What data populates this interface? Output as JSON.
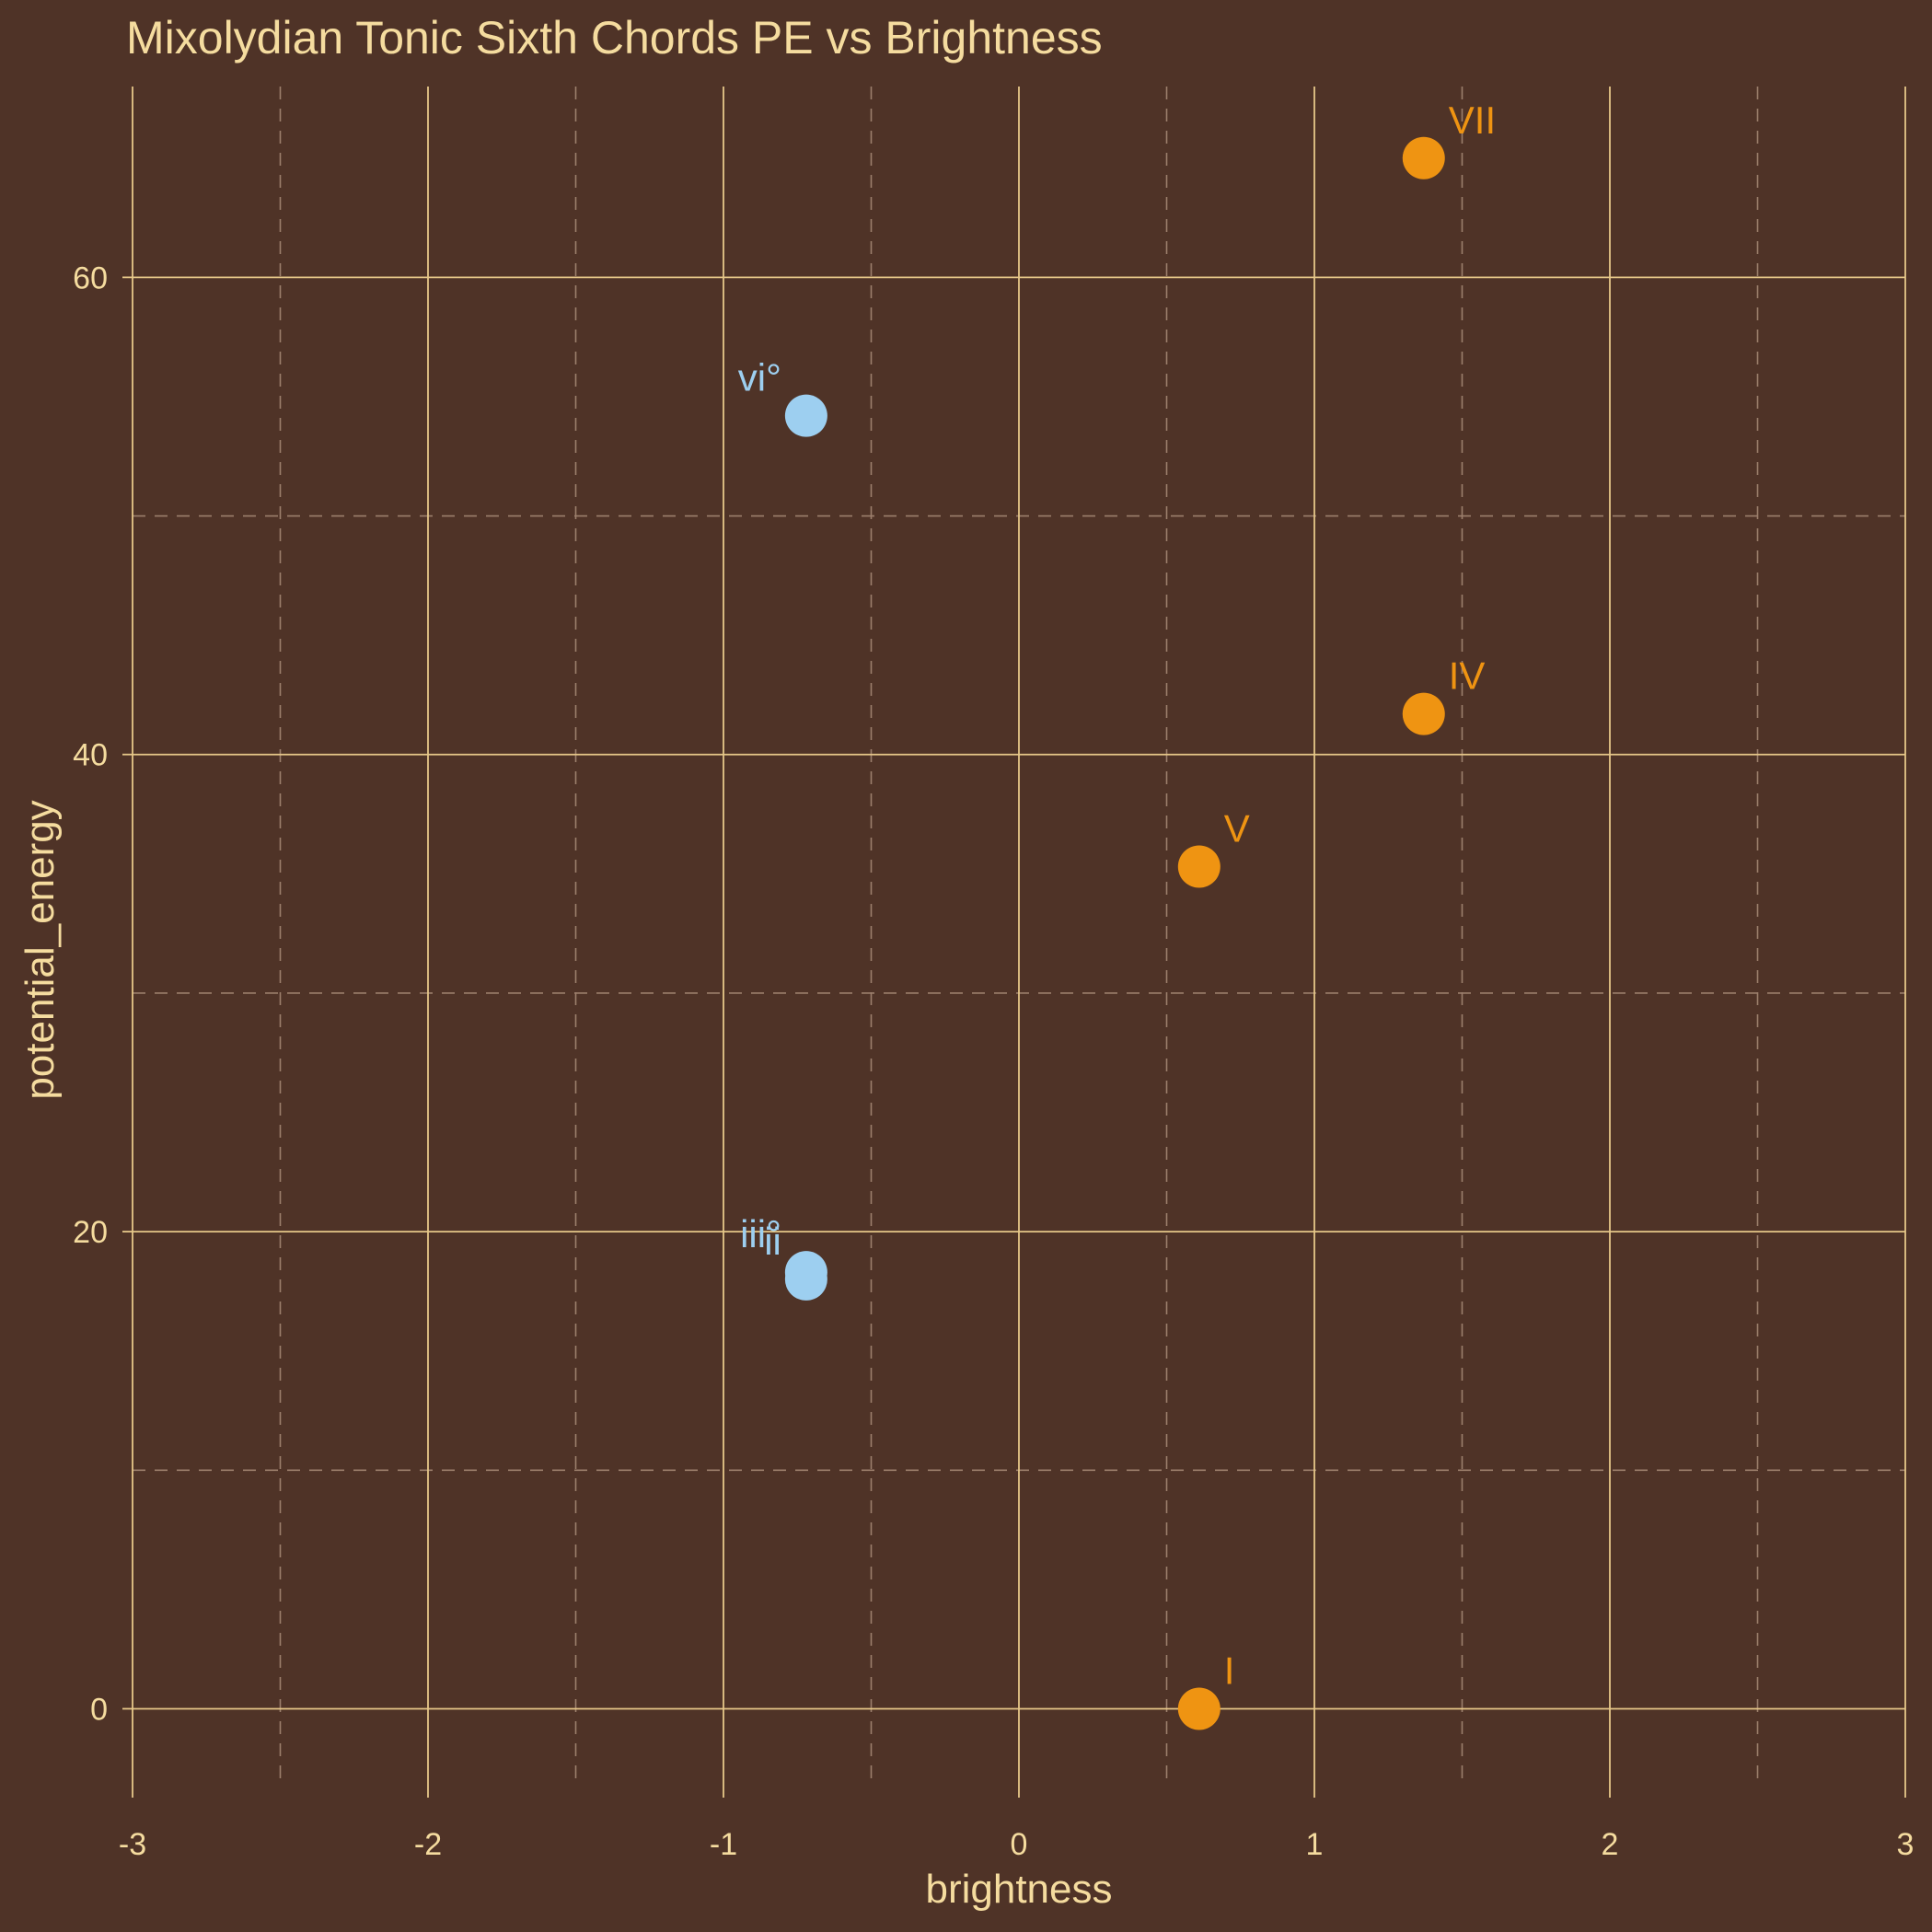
{
  "colors": {
    "background": "#4f3327",
    "text": "#f5dc9f",
    "grid_major": "#e6c789",
    "grid_minor": "#9c7f6c",
    "major": "#ef9412",
    "diminished": "#9dcff0"
  },
  "chart_data": {
    "type": "scatter",
    "title": "Mixolydian Tonic Sixth Chords PE vs Brightness",
    "xlabel": "brightness",
    "ylabel": "potential_energy",
    "xlim": [
      -3,
      3
    ],
    "ylim": [
      -3.3,
      68
    ],
    "x_ticks": [
      -3,
      -2,
      -1,
      0,
      1,
      2,
      3
    ],
    "y_ticks": [
      0,
      20,
      40,
      60
    ],
    "x_tick_labels": [
      "-3",
      "-2",
      "-1",
      "0",
      "1",
      "2",
      "3"
    ],
    "y_tick_labels": [
      "0",
      "20",
      "40",
      "60"
    ],
    "grid": true,
    "legend": "none",
    "points": [
      {
        "label": "I",
        "x": 0.61,
        "y": 0.0,
        "color": "major"
      },
      {
        "label": "V",
        "x": 0.61,
        "y": 35.3,
        "color": "major"
      },
      {
        "label": "IV",
        "x": 1.37,
        "y": 41.7,
        "color": "major"
      },
      {
        "label": "VII",
        "x": 1.37,
        "y": 65.0,
        "color": "major"
      },
      {
        "label": "vi°",
        "x": -0.72,
        "y": 54.2,
        "color": "diminished"
      },
      {
        "label": "iii°",
        "x": -0.72,
        "y": 18.3,
        "color": "diminished"
      },
      {
        "label": "ii",
        "x": -0.72,
        "y": 18.0,
        "color": "diminished"
      }
    ]
  }
}
